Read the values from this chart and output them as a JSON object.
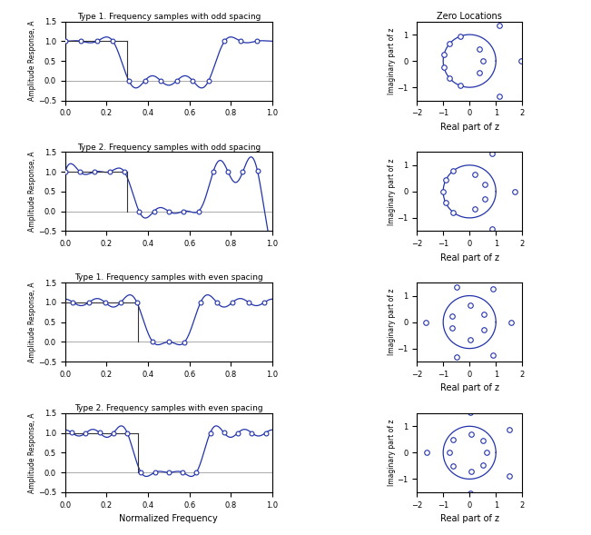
{
  "titles_left": [
    "Type 1. Frequency samples with odd spacing",
    "Type 2. Frequency samples with odd spacing",
    "Type 1. Frequency samples with even spacing",
    "Type 2. Frequency samples with even spacing"
  ],
  "title_right": "Zero Locations",
  "xlabel_left": "Normalized Frequency",
  "ylabel_left": "Amplitude Response, A",
  "xlabel_right": "Real part of z",
  "ylabel_right": "Imaginary part of z",
  "ylim_left": [
    -0.5,
    1.5
  ],
  "xlim_left": [
    0,
    1
  ],
  "xlim_right": [
    -2,
    2
  ],
  "ylim_right": [
    -1.5,
    1.5
  ],
  "line_color": "#2233AA",
  "row_configs": [
    {
      "type": 1,
      "spacing": "odd",
      "N": 13,
      "cutoff": 0.3
    },
    {
      "type": 2,
      "spacing": "odd",
      "N": 14,
      "cutoff": 0.3
    },
    {
      "type": 1,
      "spacing": "even",
      "N": 13,
      "cutoff": 0.35
    },
    {
      "type": 2,
      "spacing": "even",
      "N": 15,
      "cutoff": 0.35
    }
  ]
}
